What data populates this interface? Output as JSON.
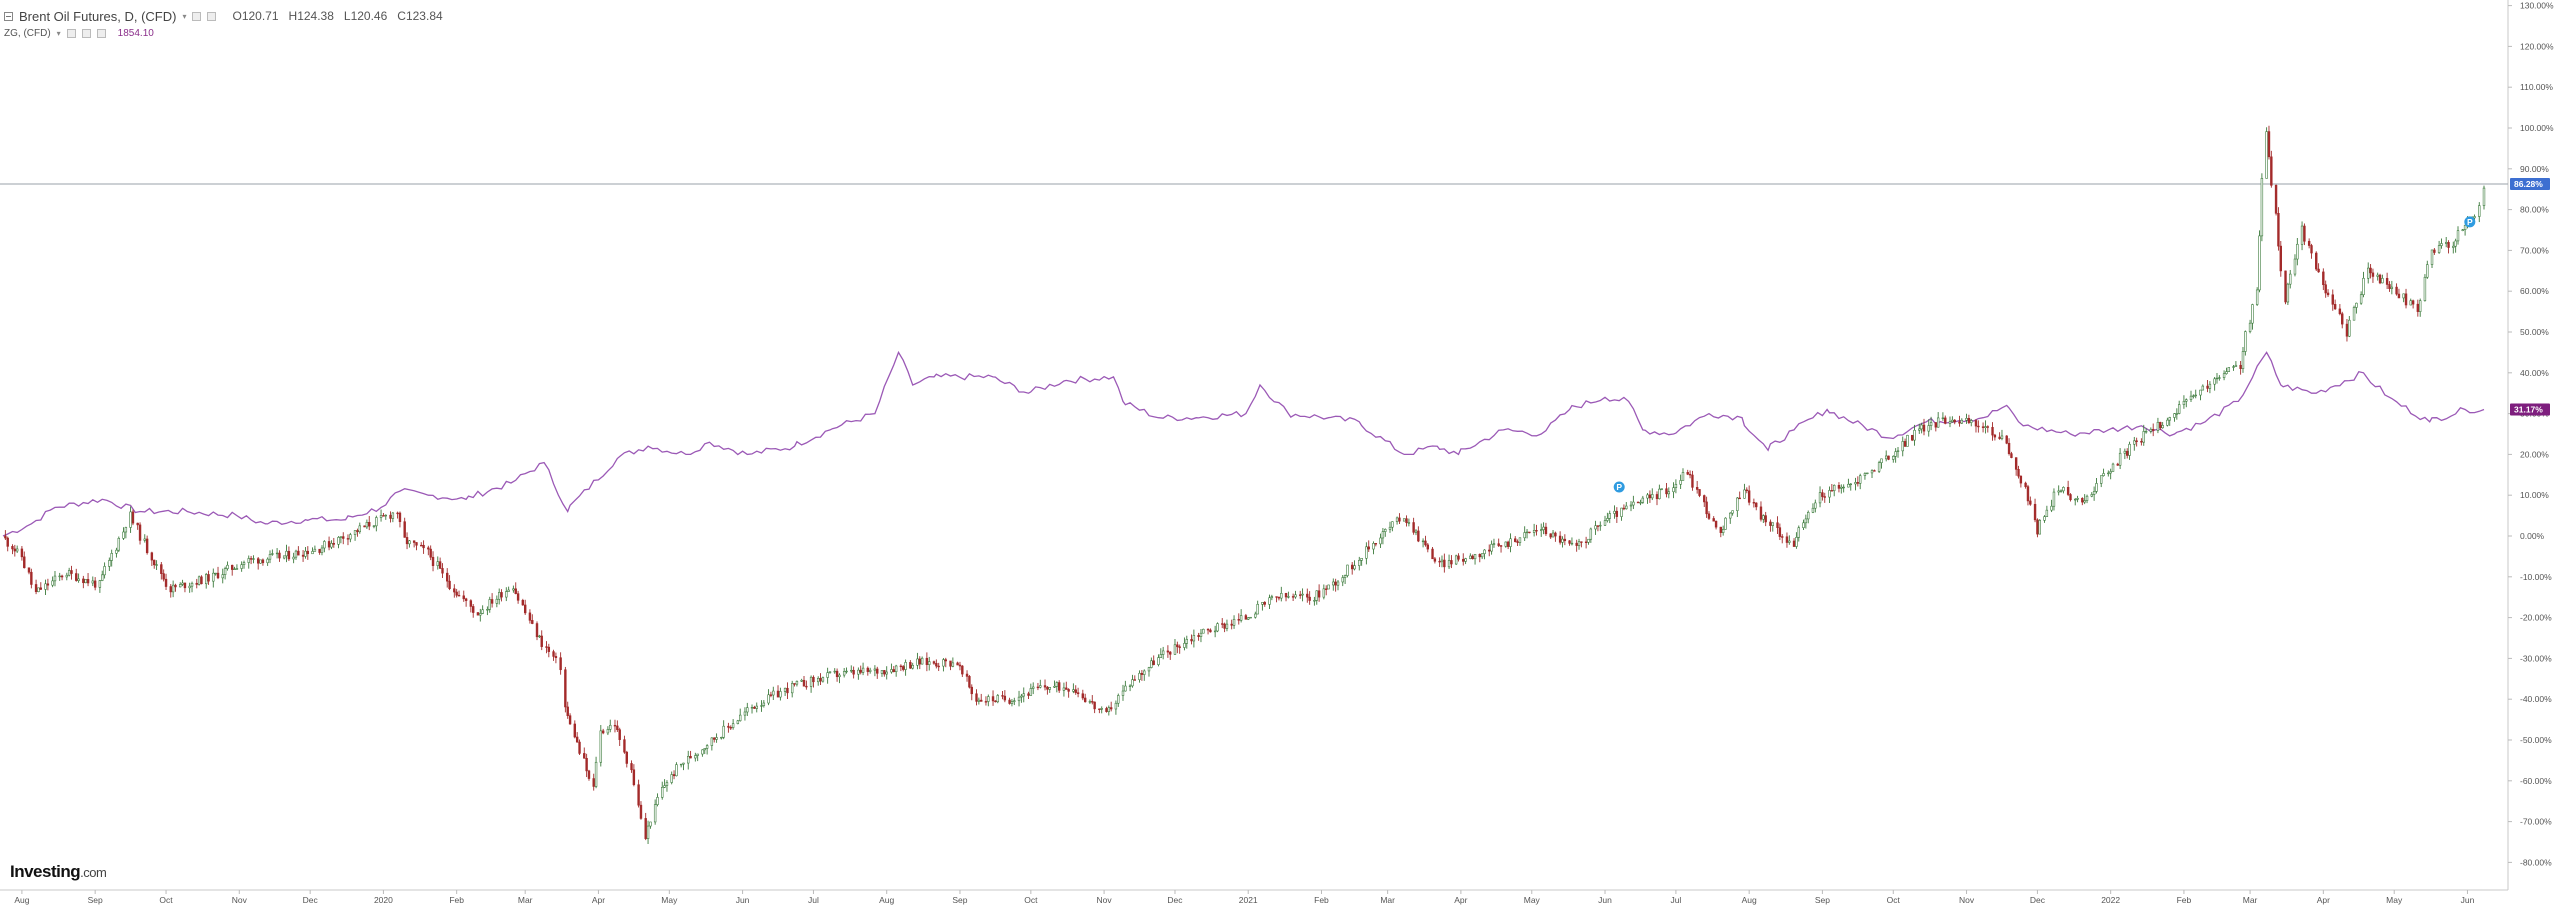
{
  "legend": {
    "main_title": "Brent Oil Futures, D, (CFD)",
    "open": "O120.71",
    "high": "H124.38",
    "low": "L120.46",
    "close": "C123.84",
    "compare_symbol": "ZG, (CFD)",
    "compare_value": "1854.10"
  },
  "brand": {
    "name": "Investing",
    "suffix": ".com"
  },
  "colors": {
    "up": "#3b7a3b",
    "down": "#a32a2a",
    "compare_line": "#9b59b6",
    "price_badge": "#3d6fd1",
    "compare_badge": "#7e1e7e"
  },
  "chart_data": {
    "type": "candlestick+line",
    "y_axis_unit": "percent change",
    "ylim": [
      -85,
      135
    ],
    "y_ticks": [
      "130.00%",
      "120.00%",
      "110.00%",
      "100.00%",
      "90.00%",
      "80.00%",
      "70.00%",
      "60.00%",
      "50.00%",
      "40.00%",
      "30.00%",
      "20.00%",
      "10.00%",
      "0.00%",
      "-10.00%",
      "-20.00%",
      "-30.00%",
      "-40.00%",
      "-50.00%",
      "-60.00%",
      "-70.00%",
      "-80.00%"
    ],
    "x_ticks": [
      "Aug",
      "Sep",
      "Oct",
      "Nov",
      "Dec",
      "2020",
      "Feb",
      "Mar",
      "Apr",
      "May",
      "Jun",
      "Jul",
      "Aug",
      "Sep",
      "Oct",
      "Nov",
      "Dec",
      "2021",
      "Feb",
      "Mar",
      "Apr",
      "May",
      "Jun",
      "Jul",
      "Aug",
      "Sep",
      "Oct",
      "Nov",
      "Dec",
      "2022",
      "Feb",
      "Mar",
      "Apr",
      "May",
      "Jun"
    ],
    "x_range": [
      "2019-07-24",
      "2022-06-08"
    ],
    "current_price_label": "86.28%",
    "current_compare_label": "31.17%",
    "series": [
      {
        "name": "Brent Oil Futures, D, (CFD)",
        "style": "candlestick",
        "points": [
          [
            "2019-07-24",
            0
          ],
          [
            "2019-08-01",
            -5
          ],
          [
            "2019-08-07",
            -14
          ],
          [
            "2019-08-20",
            -9
          ],
          [
            "2019-09-03",
            -12
          ],
          [
            "2019-09-16",
            5
          ],
          [
            "2019-09-25",
            -5
          ],
          [
            "2019-10-03",
            -13
          ],
          [
            "2019-10-21",
            -10
          ],
          [
            "2019-11-05",
            -6
          ],
          [
            "2019-11-20",
            -5
          ],
          [
            "2019-12-05",
            -3
          ],
          [
            "2019-12-20",
            1
          ],
          [
            "2020-01-07",
            6
          ],
          [
            "2020-01-10",
            -1
          ],
          [
            "2020-01-20",
            -4
          ],
          [
            "2020-01-31",
            -13
          ],
          [
            "2020-02-10",
            -19
          ],
          [
            "2020-02-25",
            -12
          ],
          [
            "2020-03-06",
            -24
          ],
          [
            "2020-03-16",
            -32
          ],
          [
            "2020-03-18",
            -42
          ],
          [
            "2020-03-30",
            -62
          ],
          [
            "2020-04-02",
            -48
          ],
          [
            "2020-04-08",
            -46
          ],
          [
            "2020-04-15",
            -57
          ],
          [
            "2020-04-21",
            -74
          ],
          [
            "2020-04-28",
            -62
          ],
          [
            "2020-05-06",
            -56
          ],
          [
            "2020-05-15",
            -52
          ],
          [
            "2020-05-26",
            -47
          ],
          [
            "2020-06-05",
            -42
          ],
          [
            "2020-06-22",
            -37
          ],
          [
            "2020-07-10",
            -34
          ],
          [
            "2020-07-30",
            -33
          ],
          [
            "2020-08-14",
            -31
          ],
          [
            "2020-08-31",
            -31
          ],
          [
            "2020-09-08",
            -40
          ],
          [
            "2020-09-22",
            -40
          ],
          [
            "2020-10-07",
            -37
          ],
          [
            "2020-10-19",
            -37
          ],
          [
            "2020-11-02",
            -44
          ],
          [
            "2020-11-12",
            -36
          ],
          [
            "2020-11-24",
            -30
          ],
          [
            "2020-12-11",
            -24
          ],
          [
            "2020-12-31",
            -20
          ],
          [
            "2021-01-13",
            -15
          ],
          [
            "2021-01-29",
            -15
          ],
          [
            "2021-02-10",
            -10
          ],
          [
            "2021-02-26",
            0
          ],
          [
            "2021-03-08",
            5
          ],
          [
            "2021-03-12",
            2
          ],
          [
            "2021-03-23",
            -7
          ],
          [
            "2021-04-05",
            -5
          ],
          [
            "2021-04-20",
            -2
          ],
          [
            "2021-05-05",
            2
          ],
          [
            "2021-05-20",
            -3
          ],
          [
            "2021-06-01",
            4
          ],
          [
            "2021-06-15",
            8
          ],
          [
            "2021-06-30",
            12
          ],
          [
            "2021-07-06",
            16
          ],
          [
            "2021-07-20",
            0
          ],
          [
            "2021-07-30",
            12
          ],
          [
            "2021-08-06",
            5
          ],
          [
            "2021-08-20",
            -2
          ],
          [
            "2021-08-31",
            10
          ],
          [
            "2021-09-15",
            13
          ],
          [
            "2021-10-01",
            20
          ],
          [
            "2021-10-12",
            26
          ],
          [
            "2021-10-25",
            29
          ],
          [
            "2021-11-08",
            27
          ],
          [
            "2021-11-18",
            23
          ],
          [
            "2021-11-30",
            5
          ],
          [
            "2021-12-01",
            1
          ],
          [
            "2021-12-10",
            12
          ],
          [
            "2021-12-20",
            8
          ],
          [
            "2021-12-31",
            16
          ],
          [
            "2022-01-14",
            24
          ],
          [
            "2022-01-28",
            30
          ],
          [
            "2022-02-14",
            38
          ],
          [
            "2022-02-25",
            42
          ],
          [
            "2022-03-04",
            60
          ],
          [
            "2022-03-08",
            100
          ],
          [
            "2022-03-16",
            58
          ],
          [
            "2022-03-23",
            75
          ],
          [
            "2022-04-01",
            62
          ],
          [
            "2022-04-11",
            50
          ],
          [
            "2022-04-20",
            65
          ],
          [
            "2022-05-02",
            60
          ],
          [
            "2022-05-11",
            55
          ],
          [
            "2022-05-17",
            70
          ],
          [
            "2022-05-26",
            72
          ],
          [
            "2022-06-06",
            80
          ],
          [
            "2022-06-08",
            86
          ]
        ]
      },
      {
        "name": "ZG, (CFD)",
        "style": "line",
        "points": [
          [
            "2019-07-24",
            0
          ],
          [
            "2019-08-05",
            3
          ],
          [
            "2019-08-15",
            7
          ],
          [
            "2019-09-04",
            9
          ],
          [
            "2019-09-20",
            6
          ],
          [
            "2019-10-10",
            6
          ],
          [
            "2019-10-31",
            5
          ],
          [
            "2019-11-12",
            3
          ],
          [
            "2019-11-29",
            4
          ],
          [
            "2019-12-16",
            4
          ],
          [
            "2019-12-31",
            7
          ],
          [
            "2020-01-08",
            11
          ],
          [
            "2020-01-20",
            10
          ],
          [
            "2020-02-05",
            9
          ],
          [
            "2020-02-24",
            13
          ],
          [
            "2020-03-09",
            18
          ],
          [
            "2020-03-19",
            6
          ],
          [
            "2020-04-09",
            19
          ],
          [
            "2020-04-22",
            22
          ],
          [
            "2020-05-08",
            20
          ],
          [
            "2020-05-18",
            23
          ],
          [
            "2020-06-03",
            20
          ],
          [
            "2020-06-23",
            22
          ],
          [
            "2020-07-08",
            26
          ],
          [
            "2020-07-27",
            30
          ],
          [
            "2020-08-06",
            45
          ],
          [
            "2020-08-12",
            37
          ],
          [
            "2020-08-21",
            39
          ],
          [
            "2020-09-15",
            39
          ],
          [
            "2020-09-30",
            35
          ],
          [
            "2020-10-15",
            38
          ],
          [
            "2020-11-05",
            39
          ],
          [
            "2020-11-09",
            33
          ],
          [
            "2020-11-24",
            29
          ],
          [
            "2020-12-10",
            29
          ],
          [
            "2020-12-31",
            30
          ],
          [
            "2021-01-06",
            37
          ],
          [
            "2021-01-18",
            30
          ],
          [
            "2021-02-04",
            29
          ],
          [
            "2021-02-17",
            28
          ],
          [
            "2021-03-08",
            20
          ],
          [
            "2021-03-22",
            22
          ],
          [
            "2021-03-31",
            20
          ],
          [
            "2021-04-19",
            26
          ],
          [
            "2021-05-05",
            25
          ],
          [
            "2021-05-17",
            31
          ],
          [
            "2021-06-01",
            34
          ],
          [
            "2021-06-11",
            33
          ],
          [
            "2021-06-17",
            26
          ],
          [
            "2021-06-30",
            25
          ],
          [
            "2021-07-15",
            30
          ],
          [
            "2021-07-29",
            29
          ],
          [
            "2021-08-09",
            21
          ],
          [
            "2021-08-20",
            26
          ],
          [
            "2021-09-03",
            31
          ],
          [
            "2021-09-30",
            24
          ],
          [
            "2021-10-15",
            28
          ],
          [
            "2021-11-08",
            29
          ],
          [
            "2021-11-18",
            32
          ],
          [
            "2021-11-25",
            27
          ],
          [
            "2021-12-15",
            25
          ],
          [
            "2021-12-31",
            26
          ],
          [
            "2022-01-14",
            27
          ],
          [
            "2022-01-28",
            25
          ],
          [
            "2022-02-10",
            28
          ],
          [
            "2022-02-24",
            33
          ],
          [
            "2022-03-08",
            45
          ],
          [
            "2022-03-14",
            37
          ],
          [
            "2022-03-29",
            35
          ],
          [
            "2022-04-18",
            40
          ],
          [
            "2022-04-29",
            34
          ],
          [
            "2022-05-16",
            28
          ],
          [
            "2022-05-31",
            31
          ],
          [
            "2022-06-08",
            31
          ]
        ]
      }
    ],
    "annotations": [
      {
        "kind": "event-marker",
        "label": "P",
        "date": "2021-06-07",
        "value": 12
      },
      {
        "kind": "event-marker",
        "label": "P",
        "date": "2022-06-02",
        "value": 77
      }
    ],
    "current_price_line": 86.28,
    "grid": false
  }
}
